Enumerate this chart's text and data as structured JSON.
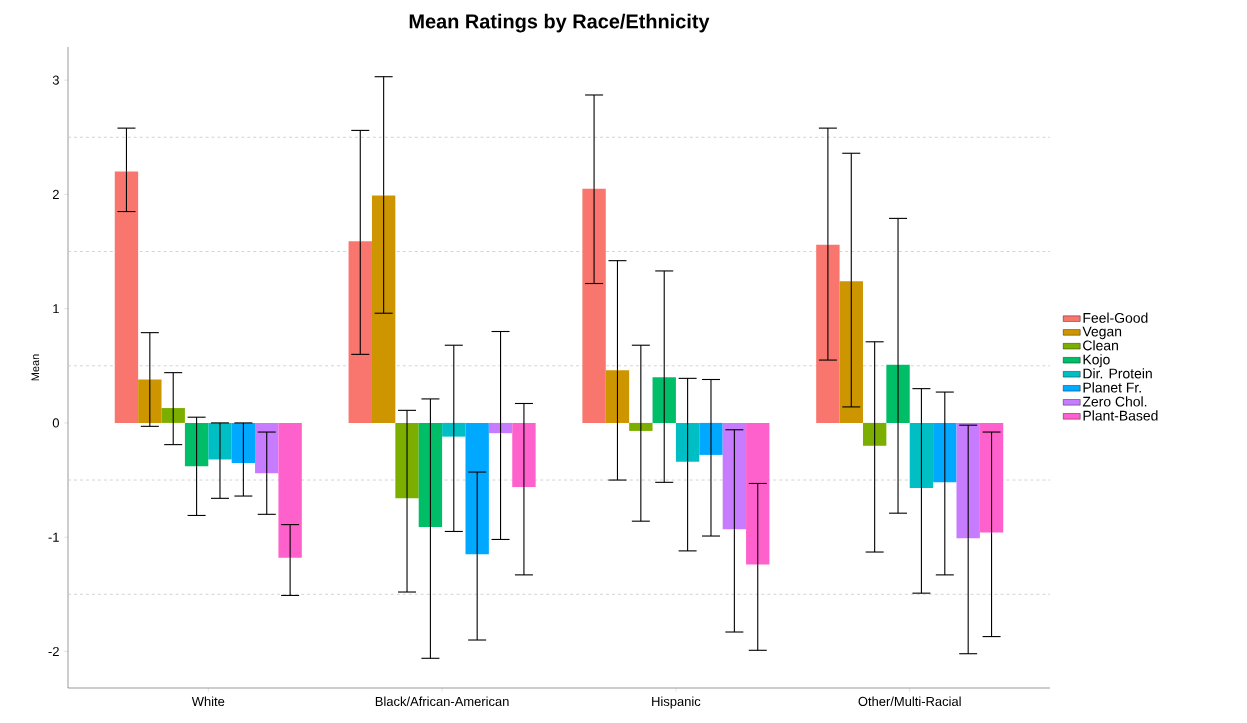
{
  "chart_data": {
    "type": "bar",
    "title": "Mean Ratings by Race/Ethnicity",
    "ylabel": "Mean",
    "categories": [
      "White",
      "Black/African-American",
      "Hispanic",
      "Other/Multi-Racial"
    ],
    "ylim": [
      -2.32,
      3.29
    ],
    "yticks": [
      -2,
      -1,
      0,
      1,
      2,
      3
    ],
    "legend": "right",
    "ref_lines": [
      {
        "axis": "y",
        "value": -1.5,
        "line_style": "dashed",
        "color": "#c8c8c8"
      },
      {
        "axis": "y",
        "value": -0.5,
        "line_style": "dashed",
        "color": "#c8c8c8"
      },
      {
        "axis": "y",
        "value": 0.5,
        "line_style": "dashed",
        "color": "#c8c8c8"
      },
      {
        "axis": "y",
        "value": 1.5,
        "line_style": "dashed",
        "color": "#c8c8c8"
      },
      {
        "axis": "y",
        "value": 2.5,
        "line_style": "dashed",
        "color": "#c8c8c8"
      }
    ],
    "series": [
      {
        "name": "Feel-Good",
        "color": "#f8766d",
        "values": [
          2.2,
          1.59,
          2.05,
          1.56
        ],
        "errors": [
          [
            1.85,
            2.58
          ],
          [
            0.6,
            2.56
          ],
          [
            1.22,
            2.87
          ],
          [
            0.55,
            2.58
          ]
        ]
      },
      {
        "name": "Vegan",
        "color": "#cd9600",
        "values": [
          0.38,
          1.99,
          0.46,
          1.24
        ],
        "errors": [
          [
            -0.03,
            0.79
          ],
          [
            0.96,
            3.03
          ],
          [
            -0.5,
            1.42
          ],
          [
            0.14,
            2.36
          ]
        ]
      },
      {
        "name": "Clean",
        "color": "#7cae00",
        "values": [
          0.13,
          -0.66,
          -0.07,
          -0.2
        ],
        "errors": [
          [
            -0.19,
            0.44
          ],
          [
            -1.48,
            0.11
          ],
          [
            -0.86,
            0.68
          ],
          [
            -1.13,
            0.71
          ]
        ]
      },
      {
        "name": "Kojo",
        "color": "#00be67",
        "values": [
          -0.38,
          -0.91,
          0.4,
          0.51
        ],
        "errors": [
          [
            -0.81,
            0.05
          ],
          [
            -2.06,
            0.21
          ],
          [
            -0.52,
            1.33
          ],
          [
            -0.79,
            1.79
          ]
        ]
      },
      {
        "name": "Dir. Protein",
        "color": "#00bfc4",
        "values": [
          -0.32,
          -0.12,
          -0.34,
          -0.57
        ],
        "errors": [
          [
            -0.66,
            0.0
          ],
          [
            -0.95,
            0.68
          ],
          [
            -1.12,
            0.39
          ],
          [
            -1.49,
            0.3
          ]
        ]
      },
      {
        "name": "Planet Fr.",
        "color": "#00a9ff",
        "values": [
          -0.35,
          -1.15,
          -0.28,
          -0.52
        ],
        "errors": [
          [
            -0.64,
            0.0
          ],
          [
            -1.9,
            -0.43
          ],
          [
            -0.99,
            0.38
          ],
          [
            -1.33,
            0.27
          ]
        ]
      },
      {
        "name": "Zero Chol.",
        "color": "#c77cff",
        "values": [
          -0.44,
          -0.09,
          -0.93,
          -1.01
        ],
        "errors": [
          [
            -0.8,
            -0.08
          ],
          [
            -1.02,
            0.8
          ],
          [
            -1.83,
            -0.06
          ],
          [
            -2.02,
            -0.02
          ]
        ]
      },
      {
        "name": "Plant-Based",
        "color": "#ff61cc",
        "values": [
          -1.18,
          -0.56,
          -1.24,
          -0.96
        ],
        "errors": [
          [
            -1.51,
            -0.89
          ],
          [
            -1.33,
            0.17
          ],
          [
            -1.99,
            -0.53
          ],
          [
            -1.87,
            -0.08
          ]
        ]
      }
    ]
  }
}
